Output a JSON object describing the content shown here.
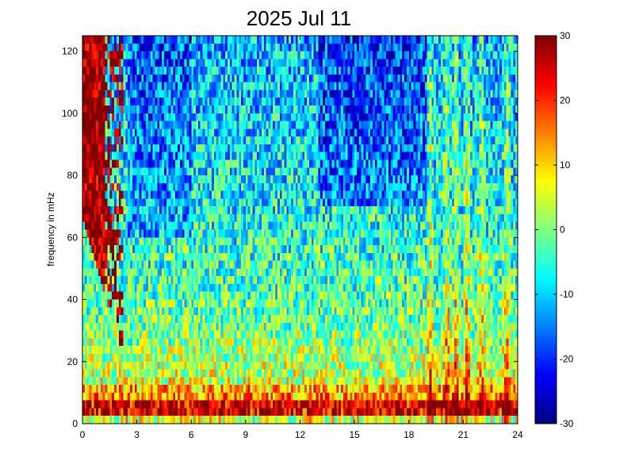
{
  "chart_data": {
    "type": "heatmap",
    "title": "2025 Jul 11",
    "xlabel": "",
    "ylabel": "frequency in mHz",
    "x_range": [
      0,
      24
    ],
    "y_range": [
      0,
      125
    ],
    "x_ticks": [
      0,
      3,
      6,
      9,
      12,
      15,
      18,
      21,
      24
    ],
    "y_ticks": [
      0,
      20,
      40,
      60,
      80,
      100,
      120
    ],
    "colorbar": {
      "range": [
        -30,
        30
      ],
      "ticks": [
        30,
        20,
        10,
        0,
        -10,
        -20,
        -30
      ],
      "colormap": "jet"
    },
    "grid": false,
    "description_values": {
      "x_resolution_hours": 0.125,
      "y_resolution_mHz": 2.5,
      "low_frequency_band_mHz": [
        2,
        8
      ],
      "low_frequency_band_level": 28,
      "high_power_region_hours": [
        0,
        2.3
      ],
      "high_power_region_level": 30,
      "quiet_background_level": -15,
      "vertical_bursts_hours": [
        19.2,
        20.1,
        20.6,
        21.2,
        22.0,
        23.4
      ]
    }
  },
  "colors": {
    "jet_low": "#00008f",
    "jet_high": "#800000",
    "axis": "#000000",
    "background": "#ffffff"
  }
}
